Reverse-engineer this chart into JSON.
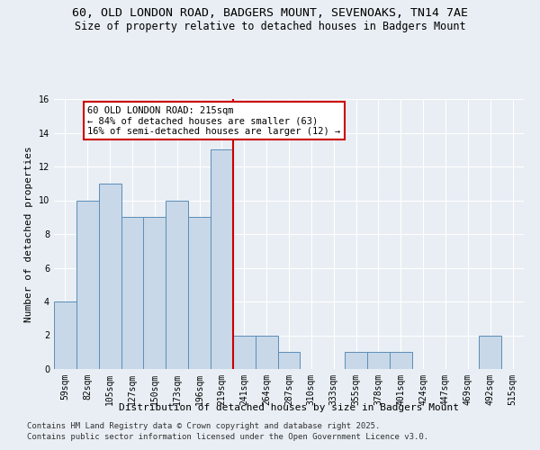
{
  "title1": "60, OLD LONDON ROAD, BADGERS MOUNT, SEVENOAKS, TN14 7AE",
  "title2": "Size of property relative to detached houses in Badgers Mount",
  "xlabel": "Distribution of detached houses by size in Badgers Mount",
  "ylabel": "Number of detached properties",
  "bar_labels": [
    "59sqm",
    "82sqm",
    "105sqm",
    "127sqm",
    "150sqm",
    "173sqm",
    "196sqm",
    "219sqm",
    "241sqm",
    "264sqm",
    "287sqm",
    "310sqm",
    "333sqm",
    "355sqm",
    "378sqm",
    "401sqm",
    "424sqm",
    "447sqm",
    "469sqm",
    "492sqm",
    "515sqm"
  ],
  "bar_values": [
    4,
    10,
    11,
    9,
    9,
    10,
    9,
    13,
    2,
    2,
    1,
    0,
    0,
    1,
    1,
    1,
    0,
    0,
    0,
    2,
    0
  ],
  "bar_color": "#c8d8e8",
  "bar_edgecolor": "#5b8db8",
  "highlight_index": 7,
  "redline_index": 7,
  "annotation_text": "60 OLD LONDON ROAD: 215sqm\n← 84% of detached houses are smaller (63)\n16% of semi-detached houses are larger (12) →",
  "annotation_box_color": "#ffffff",
  "annotation_box_edgecolor": "#cc0000",
  "redline_color": "#cc0000",
  "ylim": [
    0,
    16
  ],
  "yticks": [
    0,
    2,
    4,
    6,
    8,
    10,
    12,
    14,
    16
  ],
  "bg_color": "#e8eef4",
  "plot_bg_color": "#e8eef4",
  "footer1": "Contains HM Land Registry data © Crown copyright and database right 2025.",
  "footer2": "Contains public sector information licensed under the Open Government Licence v3.0.",
  "title1_fontsize": 9.5,
  "title2_fontsize": 8.5,
  "xlabel_fontsize": 8,
  "ylabel_fontsize": 8,
  "tick_fontsize": 7,
  "annotation_fontsize": 7.5,
  "footer_fontsize": 6.5
}
